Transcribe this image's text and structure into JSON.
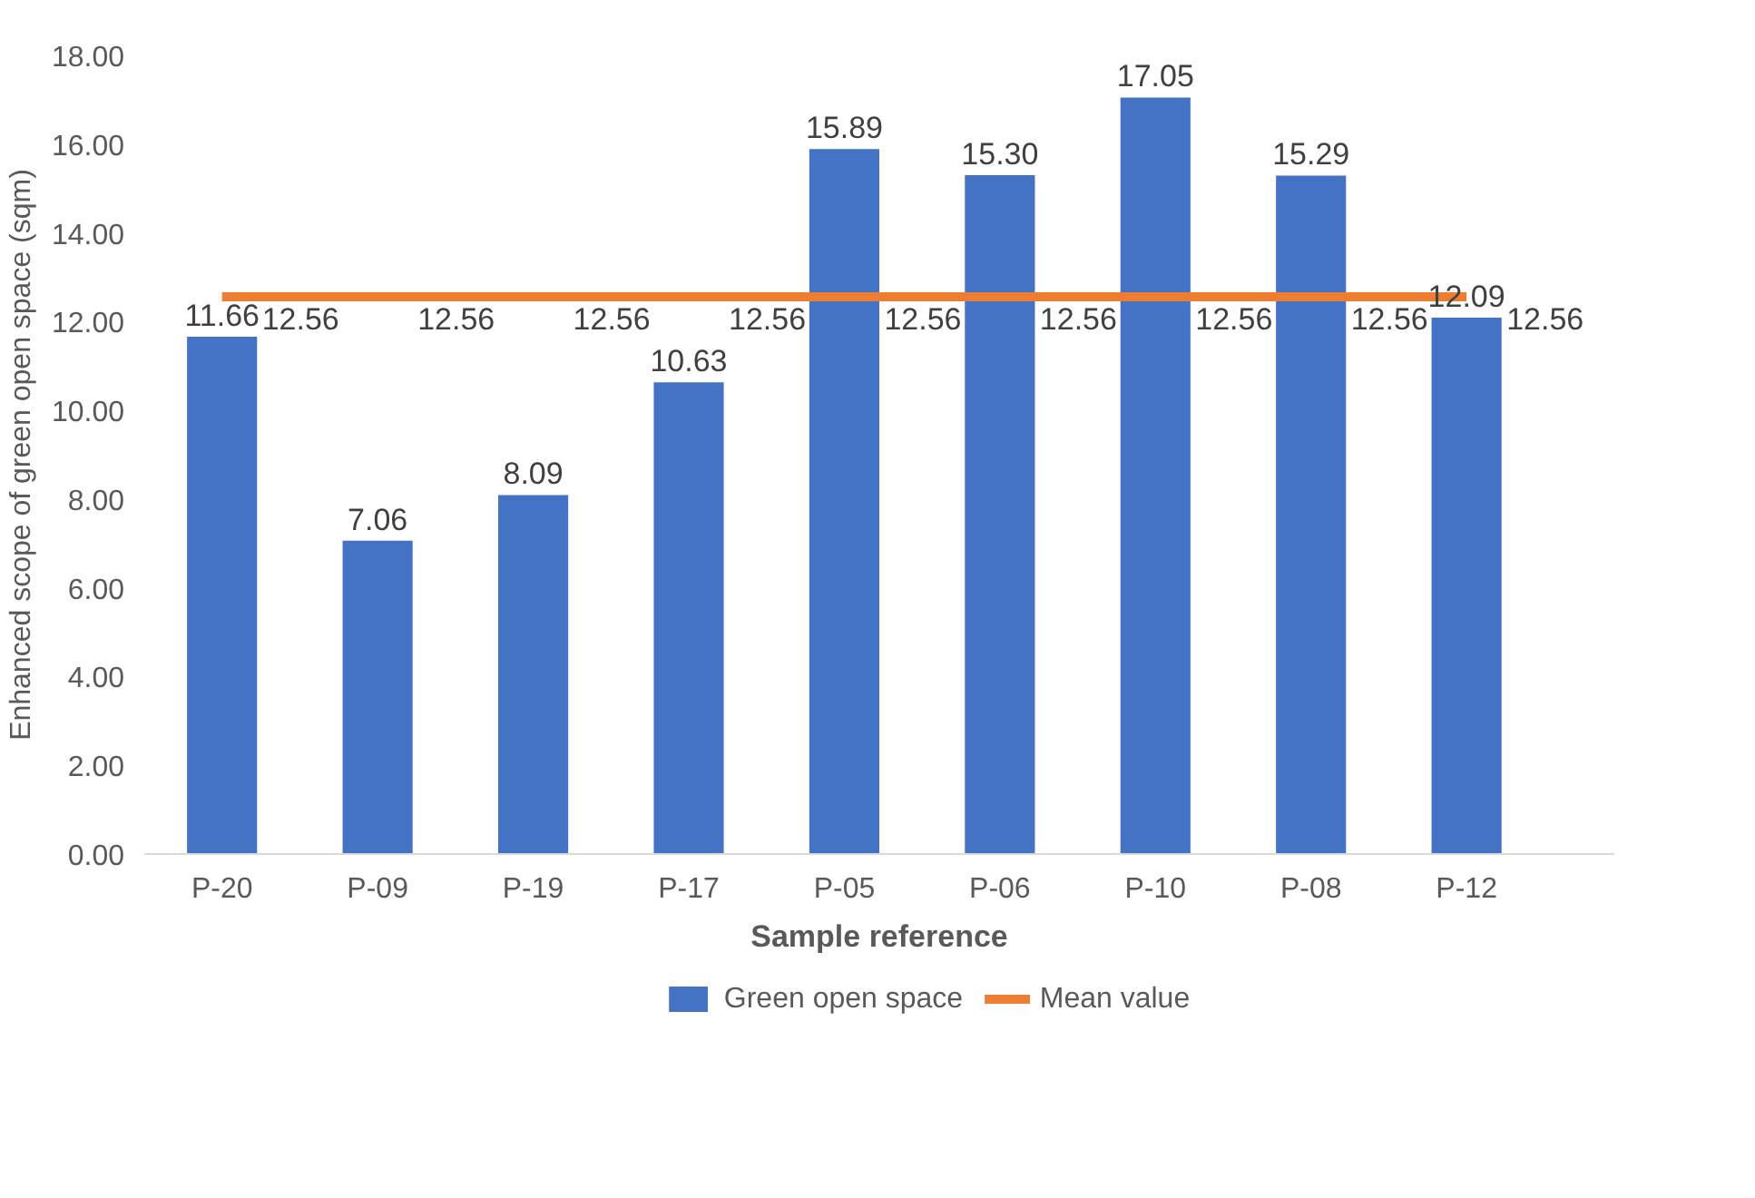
{
  "chart_data": {
    "type": "bar",
    "xlabel": "Sample reference",
    "ylabel": "Enhanced scope of green open space (sqm)",
    "categories": [
      "P-20",
      "P-09",
      "P-19",
      "P-17",
      "P-05",
      "P-06",
      "P-10",
      "P-08",
      "P-12"
    ],
    "series": [
      {
        "name": "Green open space",
        "color": "#4472c4",
        "values": [
          11.66,
          7.06,
          8.09,
          10.63,
          15.89,
          15.3,
          17.05,
          15.29,
          12.09
        ],
        "value_labels": [
          "11.66",
          "7.06",
          "8.09",
          "10.63",
          "15.89",
          "15.30",
          "17.05",
          "15.29",
          "12.09"
        ]
      },
      {
        "name": "Mean value",
        "type": "line",
        "color": "#ed7d31",
        "values": [
          12.56,
          12.56,
          12.56,
          12.56,
          12.56,
          12.56,
          12.56,
          12.56,
          12.56
        ],
        "value_labels": [
          "12.56",
          "12.56",
          "12.56",
          "12.56",
          "12.56",
          "12.56",
          "12.56",
          "12.56",
          "12.56"
        ]
      }
    ],
    "ylim": [
      0,
      18
    ],
    "yticks": [
      {
        "value": 0,
        "label": "0.00"
      },
      {
        "value": 2,
        "label": "2.00"
      },
      {
        "value": 4,
        "label": "4.00"
      },
      {
        "value": 6,
        "label": "6.00"
      },
      {
        "value": 8,
        "label": "8.00"
      },
      {
        "value": 10,
        "label": "10.00"
      },
      {
        "value": 12,
        "label": "12.00"
      },
      {
        "value": 14,
        "label": "14.00"
      },
      {
        "value": 16,
        "label": "16.00"
      },
      {
        "value": 18,
        "label": "18.00"
      }
    ],
    "legend": "bottom",
    "grid": false
  }
}
